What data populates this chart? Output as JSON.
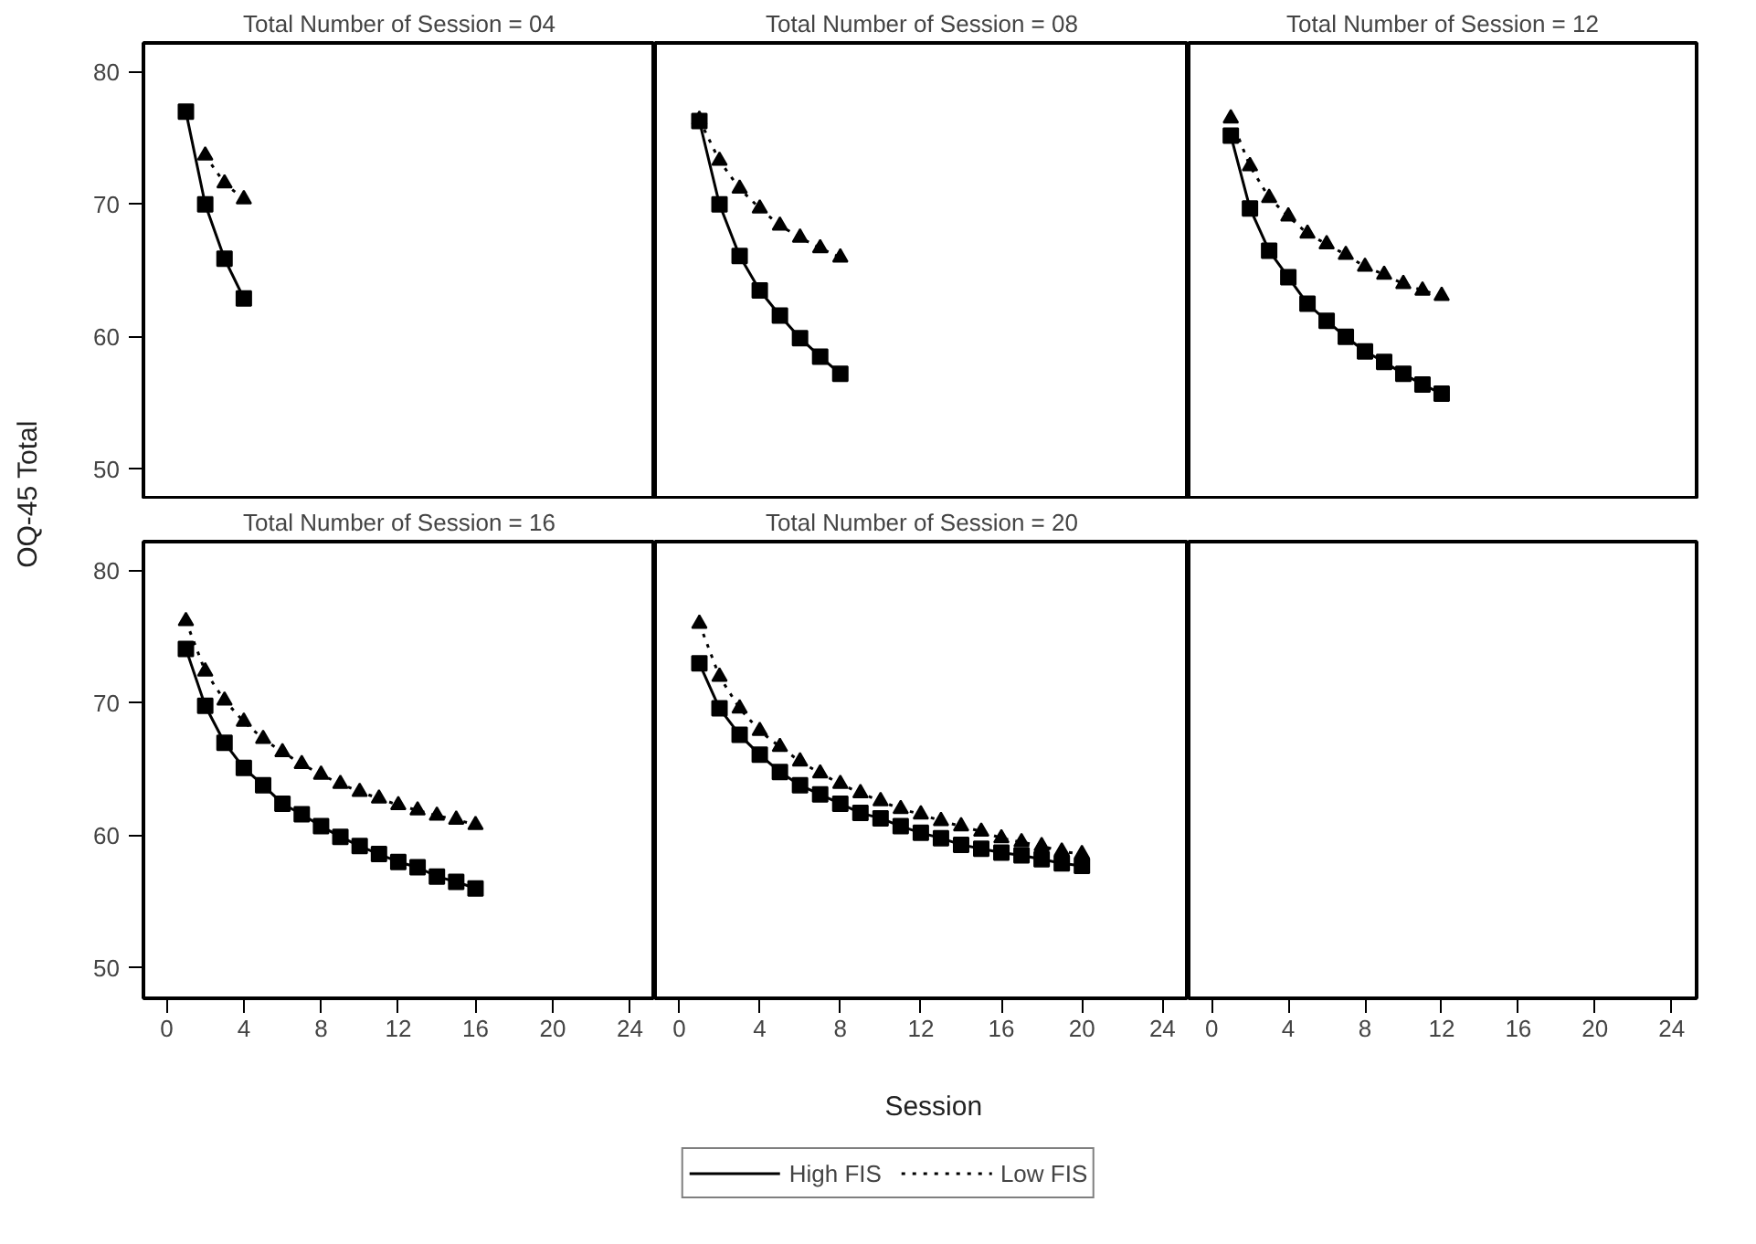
{
  "chart_data": [
    {
      "type": "line",
      "title": "Total Number of Session = 04",
      "ylabel": "OQ-45 Total",
      "x": [
        1,
        2,
        3,
        4
      ],
      "xlim": [
        -1.2,
        25.3
      ],
      "xticks": [
        0,
        4,
        8,
        12,
        16,
        20,
        24
      ],
      "ylim": [
        47.7,
        82.2
      ],
      "yticks": [
        50,
        60,
        70,
        80
      ],
      "tick_labels": "y",
      "grid": false,
      "series": [
        {
          "color": "#000000",
          "marker": "square",
          "line_style": "solid",
          "values": [
            77.0,
            70.0,
            65.9,
            62.9
          ]
        },
        {
          "color": "#000000",
          "marker": "triangle",
          "line_style": "dotted",
          "values": [
            null,
            73.7,
            71.6,
            70.4
          ]
        }
      ]
    },
    {
      "type": "line",
      "title": "Total Number of Session = 08",
      "x": [
        1,
        2,
        3,
        4,
        5,
        6,
        7,
        8
      ],
      "xlim": [
        -1.2,
        25.3
      ],
      "xticks": [
        0,
        4,
        8,
        12,
        16,
        20,
        24
      ],
      "ylim": [
        47.7,
        82.2
      ],
      "yticks": [
        50,
        60,
        70,
        80
      ],
      "tick_labels": false,
      "grid": false,
      "series": [
        {
          "color": "#000000",
          "marker": "square",
          "line_style": "solid",
          "values": [
            76.3,
            70.0,
            66.1,
            63.5,
            61.6,
            59.9,
            58.5,
            57.2
          ]
        },
        {
          "color": "#000000",
          "marker": "triangle",
          "line_style": "dotted",
          "values": [
            76.4,
            73.3,
            71.2,
            69.7,
            68.4,
            67.5,
            66.7,
            66.0
          ]
        }
      ]
    },
    {
      "type": "line",
      "title": "Total Number of Session = 12",
      "x": [
        1,
        2,
        3,
        4,
        5,
        6,
        7,
        8,
        9,
        10,
        11,
        12
      ],
      "xlim": [
        -1.2,
        25.3
      ],
      "xticks": [
        0,
        4,
        8,
        12,
        16,
        20,
        24
      ],
      "ylim": [
        47.7,
        82.2
      ],
      "yticks": [
        50,
        60,
        70,
        80
      ],
      "tick_labels": false,
      "grid": false,
      "series": [
        {
          "color": "#000000",
          "marker": "square",
          "line_style": "solid",
          "values": [
            75.2,
            69.7,
            66.5,
            64.5,
            62.5,
            61.2,
            60.0,
            58.9,
            58.1,
            57.2,
            56.4,
            55.7
          ]
        },
        {
          "color": "#000000",
          "marker": "triangle",
          "line_style": "dotted",
          "values": [
            76.5,
            72.9,
            70.5,
            69.1,
            67.8,
            67.0,
            66.2,
            65.3,
            64.7,
            64.0,
            63.5,
            63.1
          ]
        }
      ]
    },
    {
      "type": "line",
      "title": "Total Number of Session = 16",
      "x": [
        1,
        2,
        3,
        4,
        5,
        6,
        7,
        8,
        9,
        10,
        11,
        12,
        13,
        14,
        15,
        16
      ],
      "xlim": [
        -1.2,
        25.3
      ],
      "xticks": [
        0,
        4,
        8,
        12,
        16,
        20,
        24
      ],
      "ylim": [
        47.7,
        82.2
      ],
      "yticks": [
        50,
        60,
        70,
        80
      ],
      "grid": false,
      "series": [
        {
          "color": "#000000",
          "marker": "square",
          "line_style": "solid",
          "values": [
            74.1,
            69.8,
            67.0,
            65.1,
            63.8,
            62.4,
            61.6,
            60.7,
            59.9,
            59.2,
            58.6,
            58.0,
            57.6,
            56.9,
            56.5,
            56.0
          ]
        },
        {
          "color": "#000000",
          "marker": "triangle",
          "line_style": "dotted",
          "values": [
            76.2,
            72.4,
            70.2,
            68.6,
            67.3,
            66.3,
            65.4,
            64.6,
            63.9,
            63.3,
            62.8,
            62.3,
            61.9,
            61.5,
            61.2,
            60.8
          ]
        }
      ]
    },
    {
      "type": "line",
      "title": "Total Number of Session = 20",
      "xlabel": "Session",
      "legend": "bottom",
      "x": [
        1,
        2,
        3,
        4,
        5,
        6,
        7,
        8,
        9,
        10,
        11,
        12,
        13,
        14,
        15,
        16,
        17,
        18,
        19,
        20
      ],
      "xlim": [
        -1.2,
        25.3
      ],
      "xticks": [
        0,
        4,
        8,
        12,
        16,
        20,
        24
      ],
      "ylim": [
        47.7,
        82.2
      ],
      "yticks": [
        50,
        60,
        70,
        80
      ],
      "tick_labels": "x",
      "grid": false,
      "series": [
        {
          "name": "High FIS",
          "color": "#000000",
          "marker": "square",
          "line_style": "solid",
          "values": [
            73.0,
            69.6,
            67.6,
            66.1,
            64.8,
            63.8,
            63.1,
            62.4,
            61.7,
            61.3,
            60.7,
            60.2,
            59.8,
            59.3,
            59.0,
            58.7,
            58.5,
            58.2,
            57.9,
            57.7
          ]
        },
        {
          "name": "Low FIS",
          "color": "#000000",
          "marker": "triangle",
          "line_style": "dotted",
          "values": [
            76.0,
            72.0,
            69.6,
            67.9,
            66.7,
            65.6,
            64.7,
            63.9,
            63.2,
            62.6,
            62.0,
            61.6,
            61.1,
            60.7,
            60.3,
            59.8,
            59.5,
            59.2,
            58.8,
            58.6
          ]
        }
      ]
    },
    {
      "type": "line",
      "xlim": [
        -1.2,
        25.3
      ],
      "xticks": [
        0,
        4,
        8,
        12,
        16,
        20,
        24
      ],
      "ylim": [
        47.7,
        82.2
      ],
      "yticks": [
        50,
        60,
        70,
        80
      ],
      "tick_labels": "x",
      "grid": false
    }
  ]
}
